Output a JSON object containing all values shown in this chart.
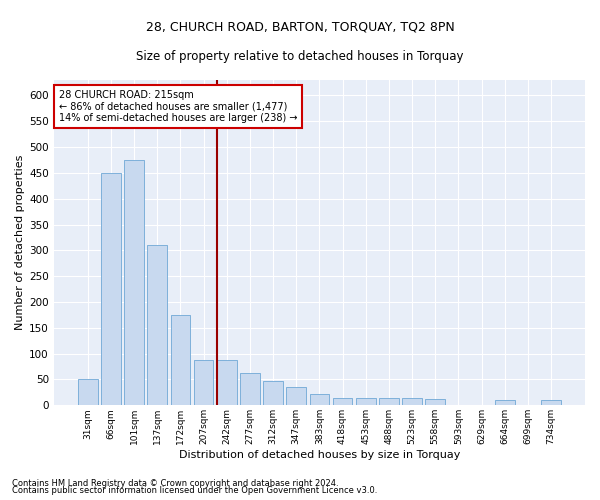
{
  "title1": "28, CHURCH ROAD, BARTON, TORQUAY, TQ2 8PN",
  "title2": "Size of property relative to detached houses in Torquay",
  "xlabel": "Distribution of detached houses by size in Torquay",
  "ylabel": "Number of detached properties",
  "footnote1": "Contains HM Land Registry data © Crown copyright and database right 2024.",
  "footnote2": "Contains public sector information licensed under the Open Government Licence v3.0.",
  "bar_labels": [
    "31sqm",
    "66sqm",
    "101sqm",
    "137sqm",
    "172sqm",
    "207sqm",
    "242sqm",
    "277sqm",
    "312sqm",
    "347sqm",
    "383sqm",
    "418sqm",
    "453sqm",
    "488sqm",
    "523sqm",
    "558sqm",
    "593sqm",
    "629sqm",
    "664sqm",
    "699sqm",
    "734sqm"
  ],
  "bar_values": [
    50,
    450,
    475,
    310,
    175,
    88,
    88,
    62,
    48,
    35,
    22,
    15,
    15,
    15,
    15,
    13,
    0,
    0,
    10,
    0,
    10
  ],
  "bar_color": "#c8d9ef",
  "bar_edge_color": "#6fa8d6",
  "vline_index": 6,
  "vline_color": "#990000",
  "ylim": [
    0,
    630
  ],
  "yticks": [
    0,
    50,
    100,
    150,
    200,
    250,
    300,
    350,
    400,
    450,
    500,
    550,
    600
  ],
  "annotation_title": "28 CHURCH ROAD: 215sqm",
  "annotation_line1": "← 86% of detached houses are smaller (1,477)",
  "annotation_line2": "14% of semi-detached houses are larger (238) →",
  "annotation_box_color": "#ffffff",
  "annotation_box_edge_color": "#cc0000",
  "bg_color": "#e8eef8",
  "fig_bg_color": "#ffffff",
  "grid_color": "#ffffff",
  "title1_fontsize": 9,
  "title2_fontsize": 8.5,
  "ylabel_fontsize": 8,
  "xlabel_fontsize": 8,
  "annotation_fontsize": 7,
  "footnote_fontsize": 6
}
